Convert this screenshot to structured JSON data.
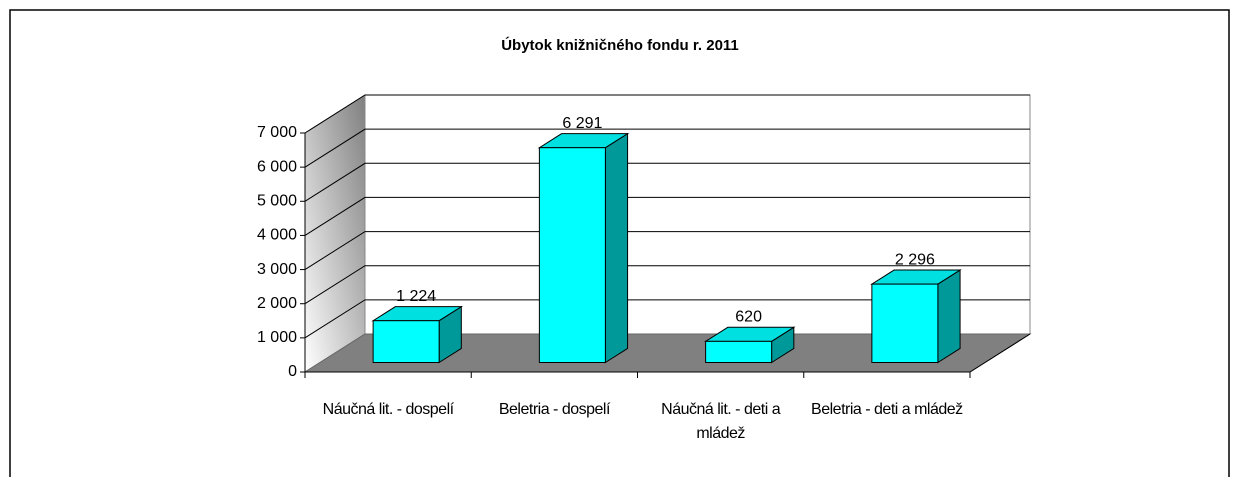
{
  "chart_data": {
    "type": "bar",
    "title": "Úbytok knižničného fondu r. 2011",
    "categories": [
      "Náučná lit. - dospelí",
      "Beletria - dospelí",
      "Náučná lit. - deti a mládež",
      "Beletria - deti a mládež"
    ],
    "values": [
      1224,
      6291,
      620,
      2296
    ],
    "value_labels": [
      "1 224",
      "6 291",
      "620",
      "2 296"
    ],
    "color": "#00ffff",
    "ylim": [
      0,
      7000
    ],
    "yticks": [
      0,
      {
        "value": 1000,
        "label": "1 000"
      },
      {
        "value": 2000,
        "label": "2 000"
      },
      {
        "value": 3000,
        "label": "3 000"
      },
      {
        "value": 4000,
        "label": "4 000"
      },
      {
        "value": 5000,
        "label": "5 000"
      },
      {
        "value": 6000,
        "label": "6 000"
      },
      {
        "value": 7000,
        "label": "7 000"
      }
    ],
    "grid": true
  }
}
